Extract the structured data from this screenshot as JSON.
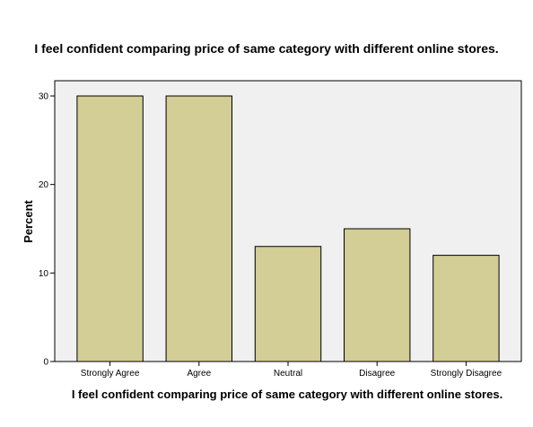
{
  "chart_data": {
    "type": "bar",
    "title": "I feel confident comparing price of same category with different online stores.",
    "categories": [
      "Strongly Agree",
      "Agree",
      "Neutral",
      "Disagree",
      "Strongly Disagree"
    ],
    "values": [
      30,
      30,
      13,
      15,
      12
    ],
    "xlabel": "I feel confident comparing price of same category with different online stores.",
    "ylabel": "Percent",
    "ylim": [
      0,
      30
    ],
    "yticks": [
      0,
      10,
      20,
      30
    ],
    "grid": false,
    "colors": {
      "bar": "#d3cd96",
      "plot_background": "#f0f0f0",
      "bar_stroke": "#000000"
    }
  }
}
